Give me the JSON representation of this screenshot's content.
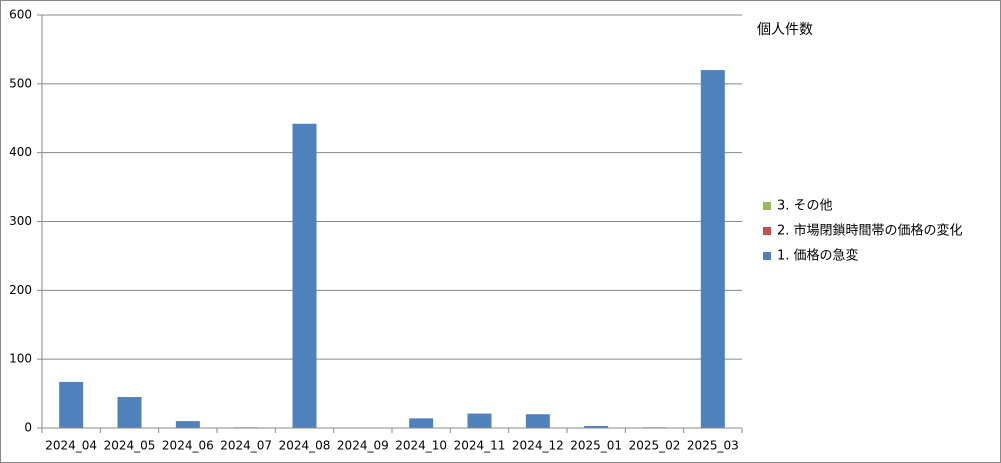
{
  "chart_data": {
    "type": "stacked_bar",
    "title": "個人件数",
    "categories": [
      "2024_04",
      "2024_05",
      "2024_06",
      "2024_07",
      "2024_08",
      "2024_09",
      "2024_10",
      "2024_11",
      "2024_12",
      "2025_01",
      "2025_02",
      "2025_03"
    ],
    "series": [
      {
        "name": "1. 価格の急変",
        "color": "#4f81bd",
        "values": [
          67,
          45,
          10,
          1,
          442,
          0,
          14,
          21,
          20,
          3,
          1,
          520
        ]
      },
      {
        "name": "2. 市場閉鎖時間帯の価格の変化",
        "color": "#c0504d",
        "values": [
          0,
          0,
          0,
          0,
          0,
          0,
          0,
          0,
          0,
          0,
          0,
          0
        ]
      },
      {
        "name": "3. その他",
        "color": "#9bbb59",
        "values": [
          0,
          0,
          0,
          0,
          0,
          0,
          0,
          0,
          0,
          0,
          0,
          0
        ]
      }
    ],
    "ylim": [
      0,
      600
    ],
    "yticks": [
      0,
      100,
      200,
      300,
      400,
      500,
      600
    ],
    "grid": true,
    "legend": "right"
  }
}
